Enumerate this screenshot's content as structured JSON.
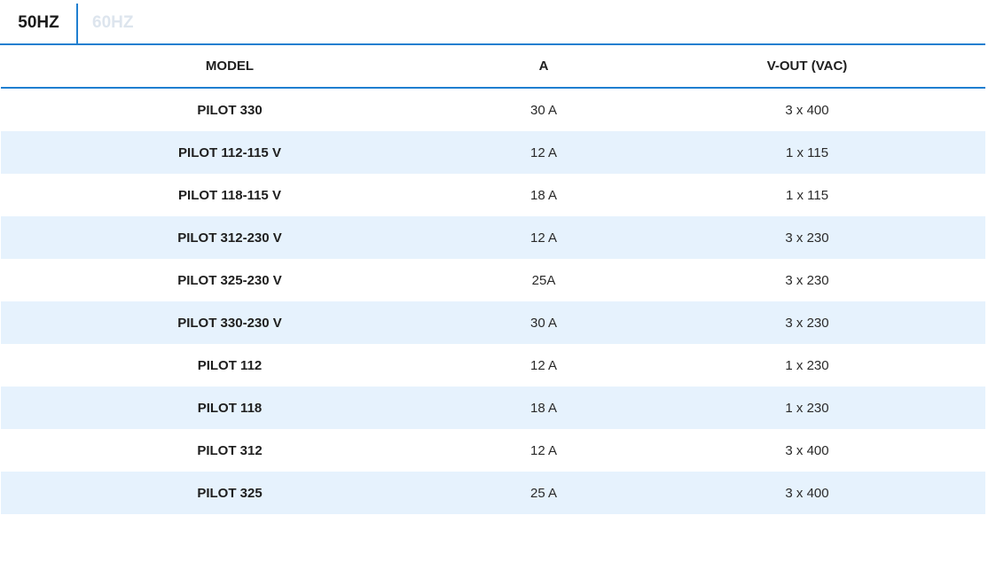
{
  "tabs": [
    {
      "label": "50HZ",
      "active": true
    },
    {
      "label": "60HZ",
      "active": false
    }
  ],
  "table": {
    "headers": [
      "MODEL",
      "A",
      "V-OUT (VAC)"
    ],
    "rows": [
      [
        "PILOT 330",
        "30 A",
        "3 x 400"
      ],
      [
        "PILOT 112-115 V",
        "12 A",
        "1 x 115"
      ],
      [
        "PILOT 118-115 V",
        "18 A",
        "1 x 115"
      ],
      [
        "PILOT 312-230 V",
        "12 A",
        "3 x 230"
      ],
      [
        "PILOT 325-230 V",
        "25A",
        "3 x 230"
      ],
      [
        "PILOT 330-230 V",
        "30 A",
        "3 x 230"
      ],
      [
        "PILOT 112",
        "12 A",
        "1 x 230"
      ],
      [
        "PILOT 118",
        "18 A",
        "1 x 230"
      ],
      [
        "PILOT 312",
        "12 A",
        "3 x 400"
      ],
      [
        "PILOT 325",
        "25 A",
        "3 x 400"
      ]
    ]
  },
  "colors": {
    "accent": "#1f7fd0",
    "stripe": "#e6f2fd",
    "inactive_tab": "#dde5ee"
  }
}
